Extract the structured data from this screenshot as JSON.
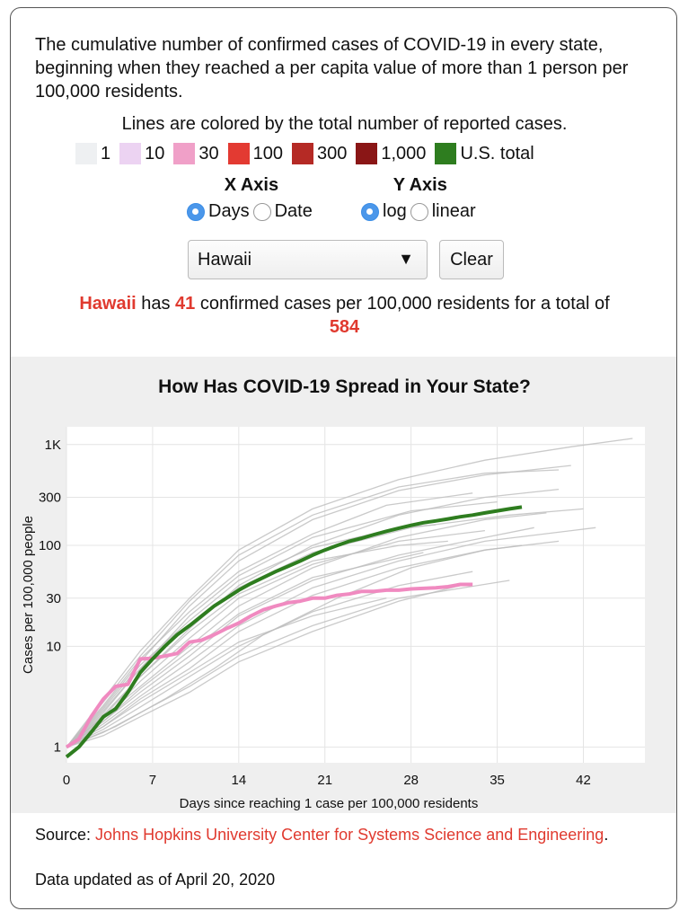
{
  "intro": "The cumulative number of confirmed cases of COVID-19 in every state, beginning when they reached a per capita value of more than 1 person per 100,000 residents.",
  "legend": {
    "title": "Lines are colored by the total number of reported cases.",
    "items": [
      {
        "label": "1",
        "color": "#eef0f2"
      },
      {
        "label": "10",
        "color": "#ecd3f2"
      },
      {
        "label": "30",
        "color": "#f0a0c8"
      },
      {
        "label": "100",
        "color": "#e33a32"
      },
      {
        "label": "300",
        "color": "#b52a25"
      },
      {
        "label": "1,000",
        "color": "#8a1616"
      },
      {
        "label": "U.S. total",
        "color": "#2e7d1f"
      }
    ]
  },
  "controls": {
    "x_axis": {
      "title": "X Axis",
      "options": [
        "Days",
        "Date"
      ],
      "selected": "Days"
    },
    "y_axis": {
      "title": "Y Axis",
      "options": [
        "log",
        "linear"
      ],
      "selected": "log"
    },
    "state_select": "Hawaii",
    "clear_label": "Clear"
  },
  "summary": {
    "state": "Hawaii",
    "text1": " has ",
    "per_capita": "41",
    "text2": " confirmed cases per 100,000 residents for a total of",
    "total": "584"
  },
  "source": {
    "prefix": "Source: ",
    "link": "Johns Hopkins University Center for Systems Science and Engineering",
    "suffix": ".",
    "updated": "Data updated as of April 20, 2020"
  },
  "chart_data": {
    "type": "line",
    "title": "How Has COVID-19 Spread in Your State?",
    "xlabel": "Days since reaching 1 case per 100,000 residents",
    "ylabel": "Cases per 100,000 people",
    "xlim": [
      0,
      47
    ],
    "ylim": [
      0.7,
      1500
    ],
    "yscale": "log",
    "xticks": [
      0,
      7,
      14,
      21,
      28,
      35,
      42
    ],
    "yticks": [
      {
        "value": 1,
        "label": "1"
      },
      {
        "value": 10,
        "label": "10"
      },
      {
        "value": 30,
        "label": "30"
      },
      {
        "value": 100,
        "label": "100"
      },
      {
        "value": 300,
        "label": "300"
      },
      {
        "value": 1000,
        "label": "1K"
      }
    ],
    "grid": true,
    "highlight": {
      "name": "Hawaii",
      "color": "#f08ac0",
      "x": [
        0,
        1,
        2,
        3,
        4,
        5,
        6,
        7,
        8,
        9,
        10,
        11,
        12,
        13,
        14,
        15,
        16,
        17,
        18,
        19,
        20,
        21,
        22,
        23,
        24,
        25,
        26,
        27,
        28,
        29,
        30,
        31,
        32,
        33
      ],
      "y": [
        1.0,
        1.2,
        2.0,
        3.0,
        4.0,
        4.2,
        7.5,
        7.6,
        8.0,
        8.5,
        11.0,
        11.5,
        13.0,
        15.0,
        17.0,
        20.0,
        23.0,
        25.0,
        27.0,
        28.0,
        30.0,
        30.0,
        32.0,
        33.0,
        35.0,
        35.0,
        36.0,
        36.0,
        37.0,
        37.5,
        38.0,
        39.0,
        41.0,
        41.0
      ]
    },
    "us_total": {
      "name": "U.S. total",
      "color": "#2e7d1f",
      "x": [
        0,
        1,
        2,
        3,
        4,
        5,
        6,
        7,
        8,
        9,
        10,
        11,
        12,
        13,
        14,
        15,
        16,
        17,
        18,
        19,
        20,
        21,
        22,
        23,
        24,
        25,
        26,
        27,
        28,
        29,
        30,
        31,
        32,
        33,
        34,
        35,
        36,
        37
      ],
      "y": [
        0.8,
        1.0,
        1.4,
        2.0,
        2.4,
        3.5,
        5.5,
        7.5,
        10.0,
        13.0,
        16.0,
        20.0,
        25.0,
        30.0,
        36.0,
        42.0,
        48.0,
        55.0,
        62.0,
        70.0,
        80.0,
        90.0,
        100.0,
        110.0,
        118.0,
        128.0,
        138.0,
        148.0,
        158.0,
        168.0,
        175.0,
        183.0,
        192.0,
        200.0,
        210.0,
        220.0,
        230.0,
        240.0
      ]
    },
    "other_states": [
      {
        "x": [
          0,
          3,
          6,
          10,
          14,
          20,
          27,
          34,
          41,
          46
        ],
        "y": [
          1.0,
          3.0,
          9.0,
          30.0,
          90.0,
          230.0,
          450.0,
          700.0,
          950.0,
          1150.0
        ]
      },
      {
        "x": [
          0,
          3,
          6,
          10,
          14,
          20,
          27,
          34,
          41
        ],
        "y": [
          1.0,
          2.5,
          7.0,
          25.0,
          70.0,
          180.0,
          350.0,
          500.0,
          620.0
        ]
      },
      {
        "x": [
          0,
          3,
          6,
          10,
          14,
          20,
          27,
          34,
          40
        ],
        "y": [
          1.0,
          2.0,
          5.0,
          15.0,
          40.0,
          100.0,
          200.0,
          300.0,
          360.0
        ]
      },
      {
        "x": [
          0,
          3,
          6,
          10,
          14,
          20,
          27,
          34,
          39
        ],
        "y": [
          1.0,
          2.0,
          4.0,
          10.0,
          25.0,
          60.0,
          120.0,
          180.0,
          210.0
        ]
      },
      {
        "x": [
          0,
          3,
          6,
          10,
          14,
          20,
          27,
          34,
          38
        ],
        "y": [
          1.0,
          1.8,
          3.5,
          8.0,
          20.0,
          45.0,
          80.0,
          120.0,
          150.0
        ]
      },
      {
        "x": [
          0,
          3,
          6,
          10,
          14,
          20,
          27,
          34,
          37
        ],
        "y": [
          1.0,
          1.6,
          3.0,
          6.0,
          14.0,
          32.0,
          60.0,
          90.0,
          100.0
        ]
      },
      {
        "x": [
          0,
          3,
          6,
          10,
          14,
          20,
          27,
          33
        ],
        "y": [
          1.0,
          1.5,
          2.5,
          5.0,
          10.0,
          22.0,
          40.0,
          55.0
        ]
      },
      {
        "x": [
          0,
          3,
          6,
          10,
          14,
          20,
          27,
          32
        ],
        "y": [
          1.0,
          1.3,
          2.0,
          3.5,
          7.0,
          14.0,
          28.0,
          40.0
        ]
      },
      {
        "x": [
          0,
          3,
          6,
          10,
          14,
          20,
          28,
          35
        ],
        "y": [
          1.0,
          2.2,
          6.0,
          20.0,
          50.0,
          120.0,
          220.0,
          270.0
        ]
      },
      {
        "x": [
          0,
          3,
          6,
          10,
          14,
          20,
          27,
          34,
          40
        ],
        "y": [
          1.0,
          2.8,
          8.0,
          28.0,
          80.0,
          200.0,
          380.0,
          520.0,
          560.0
        ]
      },
      {
        "x": [
          0,
          3,
          6,
          10,
          14,
          20,
          27,
          34,
          43
        ],
        "y": [
          1.0,
          1.7,
          3.2,
          7.0,
          16.0,
          38.0,
          70.0,
          110.0,
          150.0
        ]
      },
      {
        "x": [
          0,
          3,
          6,
          10,
          14,
          20,
          27,
          34
        ],
        "y": [
          1.0,
          1.9,
          4.5,
          12.0,
          30.0,
          65.0,
          110.0,
          140.0
        ]
      },
      {
        "x": [
          0,
          3,
          6,
          10,
          14,
          20,
          27,
          30
        ],
        "y": [
          1.0,
          2.4,
          6.5,
          18.0,
          45.0,
          95.0,
          150.0,
          160.0
        ]
      },
      {
        "x": [
          0,
          3,
          6,
          10,
          14,
          20,
          26
        ],
        "y": [
          1.0,
          1.6,
          2.8,
          5.5,
          11.0,
          20.0,
          30.0
        ]
      },
      {
        "x": [
          0,
          3,
          6,
          10,
          14,
          20,
          27,
          31
        ],
        "y": [
          1.0,
          2.1,
          5.0,
          14.0,
          33.0,
          70.0,
          100.0,
          110.0
        ]
      },
      {
        "x": [
          0,
          3,
          6,
          10,
          14,
          20,
          27,
          36
        ],
        "y": [
          1.0,
          1.4,
          2.2,
          4.0,
          8.0,
          16.0,
          30.0,
          45.0
        ]
      },
      {
        "x": [
          0,
          4,
          8,
          12,
          16,
          22,
          28,
          34,
          40
        ],
        "y": [
          1.0,
          1.6,
          3.0,
          6.0,
          13.0,
          30.0,
          60.0,
          90.0,
          110.0
        ]
      },
      {
        "x": [
          0,
          3,
          6,
          10,
          14,
          20,
          26,
          33
        ],
        "y": [
          1.0,
          2.6,
          7.5,
          22.0,
          55.0,
          130.0,
          250.0,
          330.0
        ]
      },
      {
        "x": [
          0,
          3,
          6,
          10,
          14,
          20,
          28,
          36,
          42
        ],
        "y": [
          1.0,
          2.3,
          6.0,
          16.0,
          38.0,
          85.0,
          150.0,
          200.0,
          230.0
        ]
      },
      {
        "x": [
          0,
          3,
          6,
          10,
          14,
          20,
          29
        ],
        "y": [
          1.0,
          1.8,
          3.8,
          9.0,
          21.0,
          48.0,
          85.0
        ]
      }
    ]
  }
}
